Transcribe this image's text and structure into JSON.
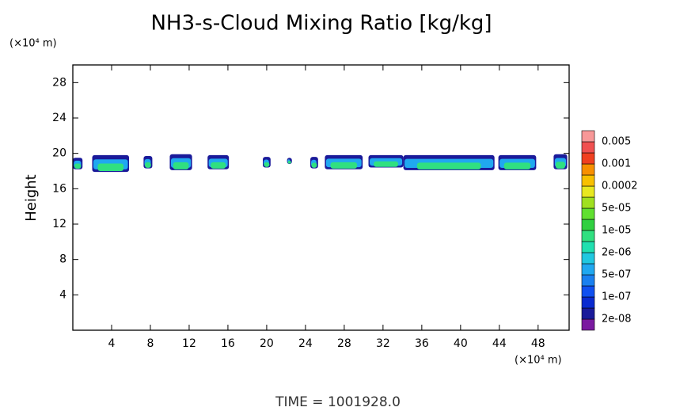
{
  "chart_data": {
    "type": "contour",
    "title": "NH3-s-Cloud Mixing Ratio [kg/kg]",
    "y_unit": "(×10⁴ m)",
    "x_unit": "(×10⁴ m)",
    "ylabel": "Height",
    "footer": "TIME = 1001928.0",
    "xlim": [
      0,
      51.2
    ],
    "ylim": [
      0,
      30
    ],
    "xticks": [
      4,
      8,
      12,
      16,
      20,
      24,
      28,
      32,
      36,
      40,
      44,
      48
    ],
    "yticks": [
      4,
      8,
      12,
      16,
      20,
      24,
      28
    ],
    "colorbar": {
      "labels": [
        "2e-08",
        "1e-07",
        "5e-07",
        "2e-06",
        "1e-05",
        "5e-05",
        "0.0002",
        "0.001",
        "0.005"
      ],
      "colors": [
        "#7a1aa0",
        "#1a1a9a",
        "#0a2ad0",
        "#1050f0",
        "#1a80f0",
        "#20a8f0",
        "#20c8e0",
        "#20e0b0",
        "#30e080",
        "#30d040",
        "#60e030",
        "#a0e020",
        "#e8e820",
        "#f8c000",
        "#f89000",
        "#f04020",
        "#f05050",
        "#f89898"
      ]
    },
    "cells": [
      {
        "x": [
          0,
          1
        ],
        "y": [
          18.2,
          19.5
        ]
      },
      {
        "x": [
          2,
          5.8
        ],
        "y": [
          17.9,
          19.8
        ]
      },
      {
        "x": [
          7.3,
          8.2
        ],
        "y": [
          18.3,
          19.7
        ]
      },
      {
        "x": [
          10,
          12.3
        ],
        "y": [
          18.1,
          19.9
        ]
      },
      {
        "x": [
          13.9,
          16.1
        ],
        "y": [
          18.2,
          19.8
        ]
      },
      {
        "x": [
          19.6,
          20.4
        ],
        "y": [
          18.4,
          19.6
        ]
      },
      {
        "x": [
          22.1,
          22.6
        ],
        "y": [
          18.8,
          19.5
        ]
      },
      {
        "x": [
          24.5,
          25.3
        ],
        "y": [
          18.3,
          19.6
        ]
      },
      {
        "x": [
          26,
          29.9
        ],
        "y": [
          18.2,
          19.8
        ]
      },
      {
        "x": [
          30.5,
          34.1
        ],
        "y": [
          18.4,
          19.8
        ]
      },
      {
        "x": [
          34.1,
          43.5
        ],
        "y": [
          18.1,
          19.8
        ]
      },
      {
        "x": [
          43.9,
          47.8
        ],
        "y": [
          18.1,
          19.8
        ]
      },
      {
        "x": [
          49.6,
          51
        ],
        "y": [
          18.2,
          19.9
        ]
      }
    ]
  }
}
